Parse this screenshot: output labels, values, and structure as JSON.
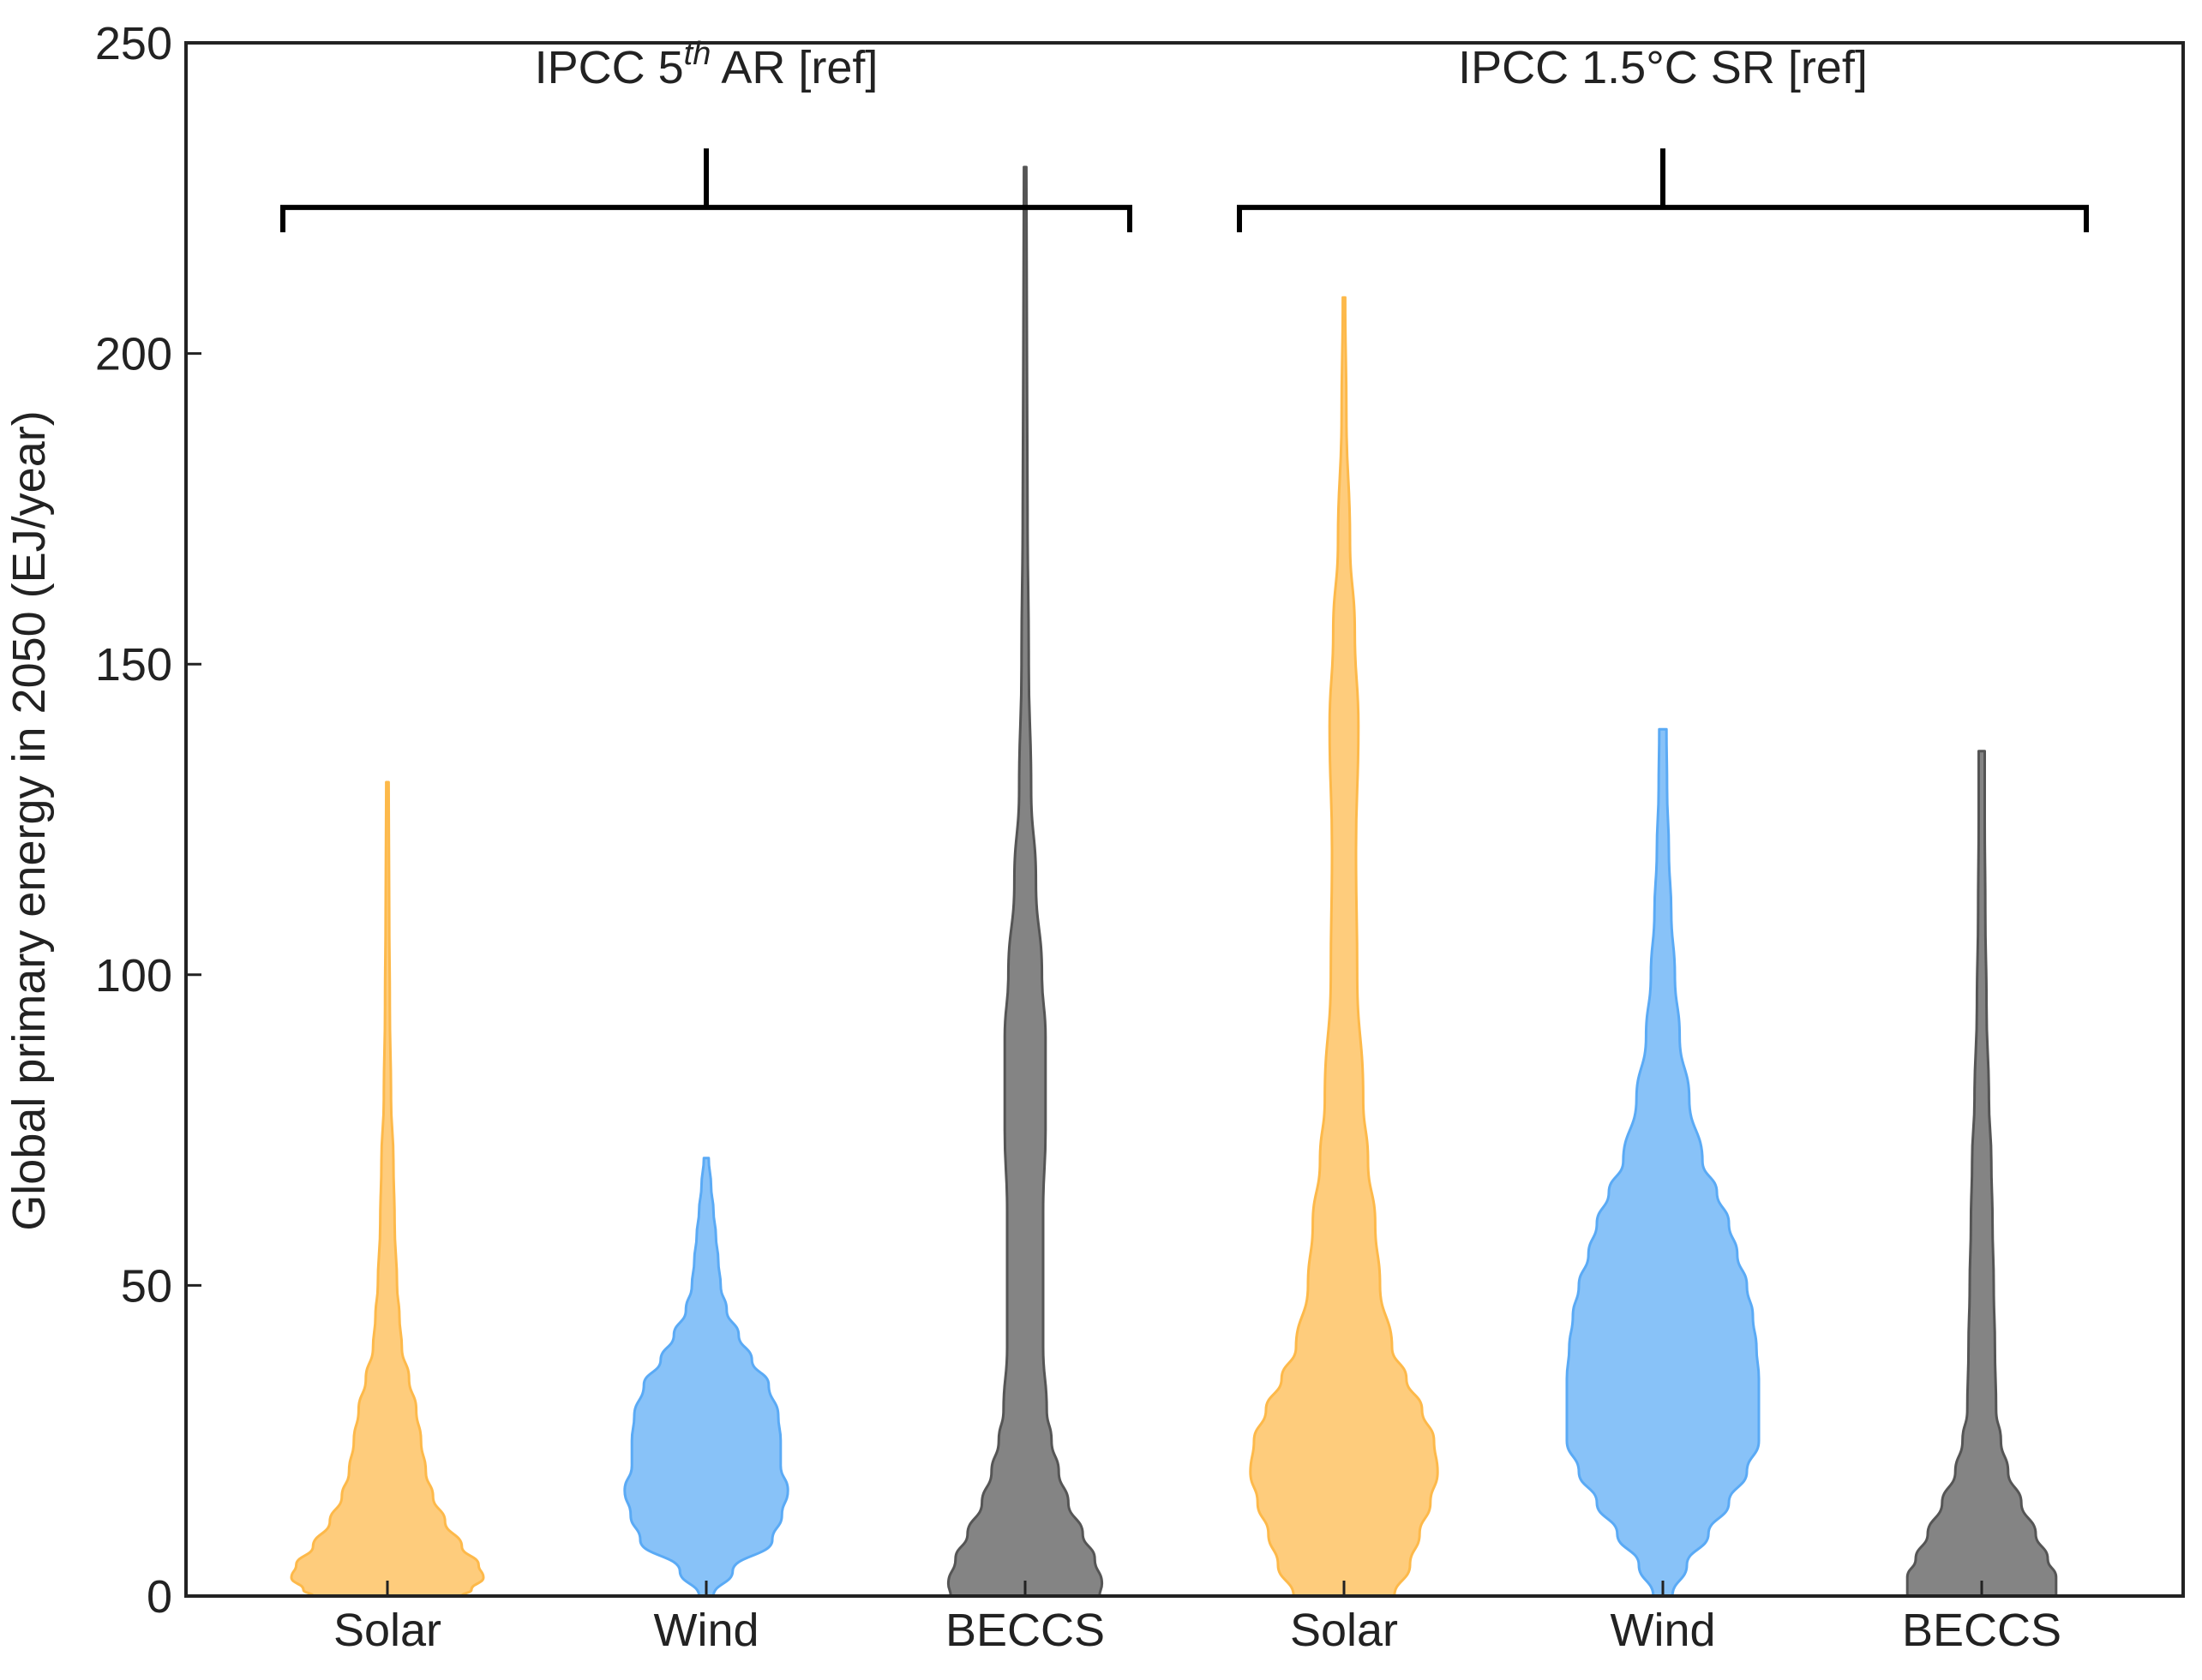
{
  "chart_data": {
    "type": "violin",
    "ylabel": "Global primary energy in 2050 (EJ/year)",
    "ylim": [
      0,
      250
    ],
    "yticks": [
      0,
      50,
      100,
      150,
      200,
      250
    ],
    "grid": false,
    "categories": [
      "Solar",
      "Wind",
      "BECCS",
      "Solar",
      "Wind",
      "BECCS"
    ],
    "groups": [
      {
        "label_parts": [
          "IPCC 5",
          "th",
          " AR [ref]"
        ],
        "categories": [
          0,
          1,
          2
        ]
      },
      {
        "label_parts": [
          "IPCC 1.5°C SR [ref]"
        ],
        "categories": [
          3,
          4,
          5
        ]
      }
    ],
    "colors": {
      "Solar": "#fdb94a",
      "Wind": "#5aaaf5",
      "BECCS": "#555555"
    },
    "series": [
      {
        "category": "Solar",
        "group": 0,
        "min": 0,
        "max": 131,
        "density_profile": [
          [
            0,
            0.62
          ],
          [
            1,
            0.7
          ],
          [
            3,
            0.8
          ],
          [
            5,
            0.76
          ],
          [
            8,
            0.62
          ],
          [
            12,
            0.48
          ],
          [
            16,
            0.38
          ],
          [
            20,
            0.32
          ],
          [
            25,
            0.28
          ],
          [
            30,
            0.24
          ],
          [
            35,
            0.18
          ],
          [
            40,
            0.12
          ],
          [
            45,
            0.1
          ],
          [
            50,
            0.08
          ],
          [
            60,
            0.06
          ],
          [
            70,
            0.05
          ],
          [
            80,
            0.03
          ],
          [
            95,
            0.02
          ],
          [
            110,
            0.015
          ],
          [
            131,
            0.01
          ]
        ]
      },
      {
        "category": "Wind",
        "group": 1,
        "min": 0,
        "max": 70.5,
        "density_profile": [
          [
            0,
            0.06
          ],
          [
            4,
            0.22
          ],
          [
            9,
            0.55
          ],
          [
            13,
            0.63
          ],
          [
            17,
            0.68
          ],
          [
            21,
            0.62
          ],
          [
            25,
            0.62
          ],
          [
            29,
            0.6
          ],
          [
            34,
            0.52
          ],
          [
            38,
            0.38
          ],
          [
            42,
            0.27
          ],
          [
            46,
            0.17
          ],
          [
            50,
            0.12
          ],
          [
            54,
            0.1
          ],
          [
            58,
            0.08
          ],
          [
            62,
            0.06
          ],
          [
            66,
            0.04
          ],
          [
            70.5,
            0.02
          ]
        ]
      },
      {
        "category": "BECCS",
        "group": 2,
        "min": 0,
        "max": 230,
        "density_profile": [
          [
            0,
            0.62
          ],
          [
            2,
            0.64
          ],
          [
            6,
            0.58
          ],
          [
            10,
            0.48
          ],
          [
            15,
            0.36
          ],
          [
            20,
            0.28
          ],
          [
            25,
            0.22
          ],
          [
            30,
            0.18
          ],
          [
            40,
            0.15
          ],
          [
            50,
            0.15
          ],
          [
            62,
            0.15
          ],
          [
            75,
            0.17
          ],
          [
            90,
            0.17
          ],
          [
            100,
            0.14
          ],
          [
            115,
            0.09
          ],
          [
            130,
            0.05
          ],
          [
            150,
            0.03
          ],
          [
            175,
            0.02
          ],
          [
            200,
            0.015
          ],
          [
            230,
            0.01
          ]
        ]
      },
      {
        "category": "Solar",
        "group": 3,
        "min": 0,
        "max": 209,
        "density_profile": [
          [
            0,
            0.42
          ],
          [
            5,
            0.55
          ],
          [
            10,
            0.63
          ],
          [
            15,
            0.72
          ],
          [
            20,
            0.78
          ],
          [
            25,
            0.75
          ],
          [
            30,
            0.65
          ],
          [
            35,
            0.52
          ],
          [
            40,
            0.4
          ],
          [
            50,
            0.3
          ],
          [
            60,
            0.26
          ],
          [
            70,
            0.2
          ],
          [
            80,
            0.16
          ],
          [
            100,
            0.11
          ],
          [
            120,
            0.1
          ],
          [
            140,
            0.12
          ],
          [
            155,
            0.09
          ],
          [
            170,
            0.05
          ],
          [
            190,
            0.02
          ],
          [
            209,
            0.01
          ]
        ]
      },
      {
        "category": "Wind",
        "group": 4,
        "min": 0,
        "max": 139.5,
        "density_profile": [
          [
            0,
            0.08
          ],
          [
            5,
            0.2
          ],
          [
            10,
            0.38
          ],
          [
            15,
            0.55
          ],
          [
            20,
            0.7
          ],
          [
            25,
            0.8
          ],
          [
            30,
            0.8
          ],
          [
            35,
            0.8
          ],
          [
            40,
            0.78
          ],
          [
            45,
            0.75
          ],
          [
            50,
            0.7
          ],
          [
            55,
            0.62
          ],
          [
            60,
            0.55
          ],
          [
            65,
            0.45
          ],
          [
            70,
            0.33
          ],
          [
            80,
            0.22
          ],
          [
            90,
            0.14
          ],
          [
            100,
            0.1
          ],
          [
            110,
            0.07
          ],
          [
            120,
            0.05
          ],
          [
            130,
            0.035
          ],
          [
            139.5,
            0.03
          ]
        ]
      },
      {
        "category": "BECCS",
        "group": 5,
        "min": 0,
        "max": 136,
        "density_profile": [
          [
            0,
            0.62
          ],
          [
            3,
            0.62
          ],
          [
            6,
            0.55
          ],
          [
            10,
            0.45
          ],
          [
            15,
            0.33
          ],
          [
            20,
            0.22
          ],
          [
            25,
            0.16
          ],
          [
            30,
            0.12
          ],
          [
            40,
            0.11
          ],
          [
            50,
            0.1
          ],
          [
            60,
            0.09
          ],
          [
            70,
            0.08
          ],
          [
            80,
            0.06
          ],
          [
            95,
            0.04
          ],
          [
            110,
            0.03
          ],
          [
            125,
            0.025
          ],
          [
            136,
            0.025
          ]
        ]
      }
    ]
  }
}
